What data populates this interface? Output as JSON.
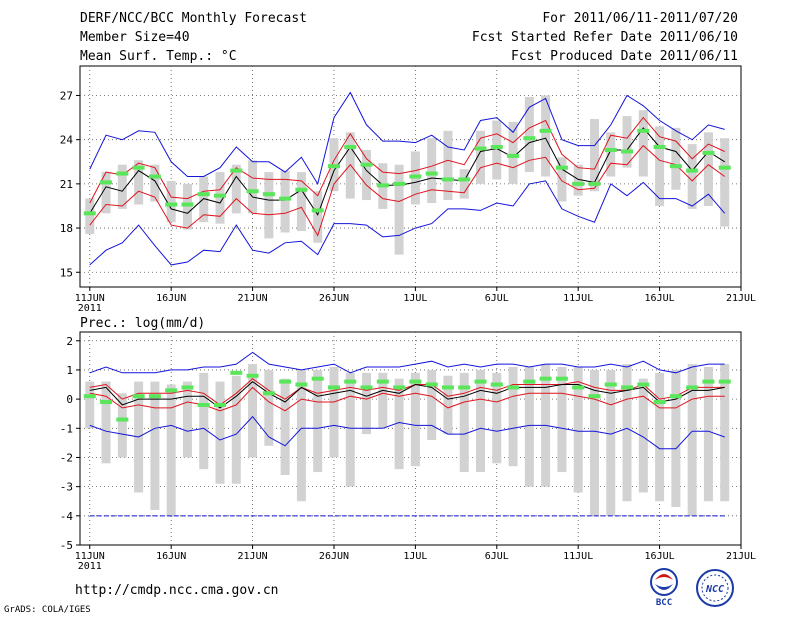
{
  "header": {
    "title": "DERF/NCC/BCC Monthly Forecast",
    "member_size": "Member Size=40",
    "variable": "Mean Surf. Temp.: °C",
    "period": "For 2011/06/11-2011/07/20",
    "start_date": "Fcst Started Refer Date 2011/06/10",
    "produced_date": "Fcst Produced Date 2011/06/11"
  },
  "footer": {
    "url": "http://cmdp.ncc.cma.gov.cn",
    "grads": "GrADS: COLA/IGES",
    "logo_left": "BCC",
    "logo_right": "NCC"
  },
  "colors": {
    "spread": "#d2d2d2",
    "ensemble_mean": "#000000",
    "std_band": "#e0141e",
    "min_max": "#1414dc",
    "member_mark": "#5ae65a",
    "grid": "#555555"
  },
  "chart_data": [
    {
      "type": "box-spread",
      "title": "",
      "ylabel": "Mean Surf. Temp.: °C",
      "year_label": "2011",
      "ylim": [
        14,
        29
      ],
      "yticks": [
        15,
        18,
        21,
        24,
        27
      ],
      "xticks": [
        {
          "day": 1,
          "label": "11JUN"
        },
        {
          "day": 6,
          "label": "16JUN"
        },
        {
          "day": 11,
          "label": "21JUN"
        },
        {
          "day": 16,
          "label": "26JUN"
        },
        {
          "day": 21,
          "label": "1JUL"
        },
        {
          "day": 26,
          "label": "6JUL"
        },
        {
          "day": 31,
          "label": "11JUL"
        },
        {
          "day": 36,
          "label": "16JUL"
        },
        {
          "day": 41,
          "label": "21JUL"
        }
      ],
      "days": [
        1,
        2,
        3,
        4,
        5,
        6,
        7,
        8,
        9,
        10,
        11,
        12,
        13,
        14,
        15,
        16,
        17,
        18,
        19,
        20,
        21,
        22,
        23,
        24,
        25,
        26,
        27,
        28,
        29,
        30,
        31,
        32,
        33,
        34,
        35,
        36,
        37,
        38,
        39,
        40
      ],
      "box_low": [
        17.6,
        19.0,
        19.3,
        19.6,
        19.8,
        18.4,
        17.9,
        18.4,
        18.3,
        19.0,
        19.0,
        17.3,
        17.7,
        17.8,
        17.0,
        20.5,
        20.0,
        19.9,
        19.3,
        16.2,
        19.6,
        19.7,
        19.9,
        20.0,
        21.0,
        21.3,
        21.0,
        21.8,
        21.5,
        19.8,
        20.2,
        20.5,
        21.5,
        22.1,
        21.5,
        19.5,
        20.6,
        19.3,
        19.5,
        18.1
      ],
      "box_high": [
        20.0,
        21.8,
        22.3,
        22.6,
        22.3,
        21.2,
        21.0,
        21.5,
        21.8,
        22.3,
        22.6,
        21.8,
        21.9,
        21.8,
        20.5,
        24.1,
        24.5,
        23.3,
        22.4,
        22.3,
        23.2,
        24.1,
        24.6,
        22.0,
        24.6,
        25.3,
        25.2,
        26.9,
        27.0,
        22.8,
        22.3,
        25.4,
        24.5,
        25.6,
        26.0,
        24.9,
        24.8,
        23.7,
        24.5,
        24.1
      ],
      "mean": [
        19.0,
        20.8,
        20.5,
        21.9,
        21.2,
        19.3,
        19.0,
        20.0,
        19.7,
        21.5,
        20.1,
        19.9,
        19.9,
        20.6,
        18.9,
        21.9,
        23.5,
        21.9,
        20.9,
        20.9,
        21.1,
        21.4,
        21.3,
        21.2,
        23.2,
        23.4,
        22.8,
        23.8,
        24.1,
        22.0,
        21.3,
        21.1,
        23.3,
        23.3,
        24.8,
        23.5,
        23.2,
        21.9,
        23.2,
        22.5
      ],
      "std_high": [
        19.7,
        21.8,
        21.6,
        22.4,
        22.1,
        20.1,
        20.0,
        20.5,
        20.6,
        22.1,
        21.4,
        21.3,
        21.3,
        21.2,
        20.2,
        22.6,
        24.4,
        22.7,
        21.8,
        21.7,
        21.9,
        22.2,
        22.6,
        22.3,
        24.1,
        24.4,
        23.8,
        24.8,
        25.3,
        23.0,
        22.1,
        22.0,
        24.3,
        24.1,
        25.5,
        24.2,
        23.9,
        22.7,
        23.7,
        23.2
      ],
      "std_low": [
        18.2,
        19.6,
        19.5,
        20.5,
        20.1,
        18.2,
        18.0,
        18.9,
        18.8,
        20.0,
        19.0,
        18.9,
        19.0,
        19.4,
        17.5,
        21.0,
        22.3,
        20.9,
        20.0,
        19.8,
        20.3,
        20.6,
        20.5,
        20.4,
        22.1,
        22.4,
        22.1,
        22.6,
        22.8,
        21.2,
        20.6,
        20.7,
        22.4,
        22.3,
        23.6,
        22.6,
        22.3,
        21.2,
        22.3,
        21.5
      ],
      "max": [
        22.0,
        24.3,
        24.0,
        24.6,
        24.5,
        22.5,
        21.5,
        21.5,
        22.1,
        23.5,
        22.5,
        22.5,
        21.8,
        22.8,
        21.0,
        25.5,
        27.2,
        25.0,
        23.9,
        23.9,
        23.8,
        24.3,
        23.5,
        23.3,
        25.3,
        25.5,
        24.5,
        26.2,
        26.8,
        24.0,
        23.6,
        23.6,
        25.0,
        27.0,
        26.3,
        25.3,
        24.6,
        24.0,
        25.0,
        24.7
      ],
      "min": [
        15.5,
        16.5,
        17.0,
        18.2,
        16.8,
        15.5,
        15.7,
        16.5,
        16.4,
        18.2,
        16.5,
        16.3,
        17.0,
        17.1,
        16.2,
        18.3,
        18.3,
        18.2,
        17.4,
        17.5,
        18.0,
        18.3,
        19.3,
        19.3,
        19.2,
        19.7,
        19.5,
        21.0,
        21.2,
        19.3,
        18.8,
        18.4,
        21.0,
        20.2,
        21.1,
        20.0,
        20.0,
        19.5,
        20.3,
        19.0
      ],
      "member_marks": [
        19.0,
        21.1,
        21.7,
        22.1,
        21.5,
        19.6,
        19.6,
        20.3,
        20.2,
        21.9,
        20.5,
        20.3,
        20.0,
        20.6,
        19.2,
        22.2,
        23.5,
        22.3,
        20.9,
        21.0,
        21.5,
        21.7,
        21.3,
        21.3,
        23.4,
        23.5,
        22.9,
        24.1,
        24.6,
        22.1,
        21.0,
        21.0,
        23.3,
        23.2,
        24.6,
        23.5,
        22.2,
        21.9,
        23.1,
        22.1
      ]
    },
    {
      "type": "box-spread",
      "title": "",
      "ylabel": "Prec.: log(mm/d)",
      "year_label": "2011",
      "ylim": [
        -5,
        2.3
      ],
      "yticks": [
        -5,
        -4,
        -3,
        -2,
        -1,
        0,
        1,
        2
      ],
      "xticks": [
        {
          "day": 1,
          "label": "11JUN"
        },
        {
          "day": 6,
          "label": "16JUN"
        },
        {
          "day": 11,
          "label": "21JUN"
        },
        {
          "day": 16,
          "label": "26JUN"
        },
        {
          "day": 21,
          "label": "1JUL"
        },
        {
          "day": 26,
          "label": "6JUL"
        },
        {
          "day": 31,
          "label": "11JUL"
        },
        {
          "day": 36,
          "label": "16JUL"
        },
        {
          "day": 41,
          "label": "21JUL"
        }
      ],
      "days": [
        1,
        2,
        3,
        4,
        5,
        6,
        7,
        8,
        9,
        10,
        11,
        12,
        13,
        14,
        15,
        16,
        17,
        18,
        19,
        20,
        21,
        22,
        23,
        24,
        25,
        26,
        27,
        28,
        29,
        30,
        31,
        32,
        33,
        34,
        35,
        36,
        37,
        38,
        39,
        40
      ],
      "box_low": [
        -1.0,
        -2.2,
        -2.0,
        -3.2,
        -3.8,
        -4.0,
        -2.0,
        -2.4,
        -2.9,
        -2.9,
        -2.0,
        -1.6,
        -2.6,
        -3.5,
        -2.5,
        -2.0,
        -3.0,
        -1.2,
        -1.0,
        -2.4,
        -2.3,
        -1.4,
        -1.2,
        -2.5,
        -2.5,
        -2.2,
        -2.3,
        -3.0,
        -3.0,
        -2.5,
        -3.2,
        -4.0,
        -4.0,
        -3.5,
        -3.2,
        -3.5,
        -3.7,
        -4.0,
        -3.5,
        -3.5
      ],
      "box_high": [
        0.6,
        0.6,
        0.2,
        0.6,
        0.6,
        0.5,
        0.6,
        0.9,
        0.6,
        0.8,
        1.2,
        1.0,
        0.7,
        1.0,
        1.0,
        1.1,
        0.9,
        0.9,
        0.9,
        0.7,
        0.9,
        1.0,
        0.8,
        0.9,
        1.0,
        0.9,
        1.1,
        1.1,
        1.2,
        1.1,
        1.1,
        1.0,
        1.0,
        1.2,
        0.7,
        0.9,
        1.0,
        1.2,
        1.1,
        1.2
      ],
      "mean": [
        0.3,
        0.4,
        -0.2,
        0.0,
        0.0,
        0.0,
        0.1,
        0.1,
        -0.3,
        0.1,
        0.6,
        0.2,
        -0.1,
        0.4,
        0.1,
        0.2,
        0.3,
        0.1,
        0.3,
        0.2,
        0.5,
        0.4,
        0.0,
        0.1,
        0.3,
        0.2,
        0.4,
        0.4,
        0.4,
        0.5,
        0.5,
        0.3,
        0.2,
        0.3,
        0.4,
        -0.1,
        0.0,
        0.3,
        0.3,
        0.4
      ],
      "std_high": [
        0.4,
        0.5,
        0.0,
        0.2,
        0.2,
        0.2,
        0.3,
        0.2,
        -0.2,
        0.2,
        0.7,
        0.3,
        0.0,
        0.4,
        0.2,
        0.3,
        0.4,
        0.3,
        0.4,
        0.3,
        0.5,
        0.5,
        0.1,
        0.2,
        0.4,
        0.3,
        0.5,
        0.5,
        0.5,
        0.5,
        0.6,
        0.4,
        0.3,
        0.3,
        0.5,
        0.0,
        0.1,
        0.4,
        0.4,
        0.4
      ],
      "std_low": [
        0.2,
        0.1,
        -0.3,
        -0.2,
        -0.3,
        -0.3,
        -0.1,
        -0.2,
        -0.4,
        -0.2,
        0.4,
        -0.1,
        -0.4,
        0.0,
        -0.1,
        -0.1,
        0.1,
        0.0,
        0.2,
        0.1,
        0.2,
        0.1,
        -0.3,
        -0.1,
        0.0,
        -0.1,
        0.1,
        0.2,
        0.2,
        0.2,
        0.1,
        0.0,
        -0.2,
        0.0,
        0.1,
        -0.3,
        -0.3,
        0.0,
        0.1,
        0.1
      ],
      "max": [
        0.9,
        1.1,
        0.9,
        0.9,
        0.9,
        1.0,
        1.0,
        1.1,
        1.1,
        1.2,
        1.6,
        1.2,
        1.1,
        1.0,
        1.1,
        1.2,
        0.9,
        1.1,
        1.1,
        1.1,
        1.2,
        1.3,
        1.1,
        1.2,
        1.1,
        1.2,
        1.2,
        1.1,
        1.2,
        1.2,
        1.1,
        1.1,
        1.2,
        1.1,
        1.3,
        1.0,
        0.9,
        1.1,
        1.2,
        1.2
      ],
      "min": [
        -0.9,
        -1.1,
        -1.2,
        -1.3,
        -1.0,
        -0.9,
        -1.1,
        -1.0,
        -1.4,
        -1.2,
        -0.6,
        -1.3,
        -1.6,
        -1.0,
        -1.0,
        -0.9,
        -1.0,
        -1.0,
        -1.0,
        -0.8,
        -0.9,
        -0.9,
        -1.2,
        -1.2,
        -1.0,
        -1.1,
        -1.0,
        -0.9,
        -0.9,
        -1.0,
        -1.1,
        -1.1,
        -1.2,
        -1.0,
        -1.3,
        -1.7,
        -1.7,
        -1.1,
        -1.1,
        -1.3
      ],
      "floor": -4.0,
      "member_marks": [
        0.1,
        -0.1,
        -0.7,
        0.1,
        0.1,
        0.3,
        0.4,
        -0.2,
        -0.2,
        0.9,
        0.8,
        0.2,
        0.6,
        0.5,
        0.7,
        0.4,
        0.6,
        0.4,
        0.6,
        0.4,
        0.6,
        0.5,
        0.4,
        0.4,
        0.6,
        0.5,
        0.4,
        0.6,
        0.7,
        0.7,
        0.4,
        0.1,
        0.5,
        0.4,
        0.5,
        -0.1,
        0.1,
        0.4,
        0.6,
        0.6
      ]
    }
  ]
}
